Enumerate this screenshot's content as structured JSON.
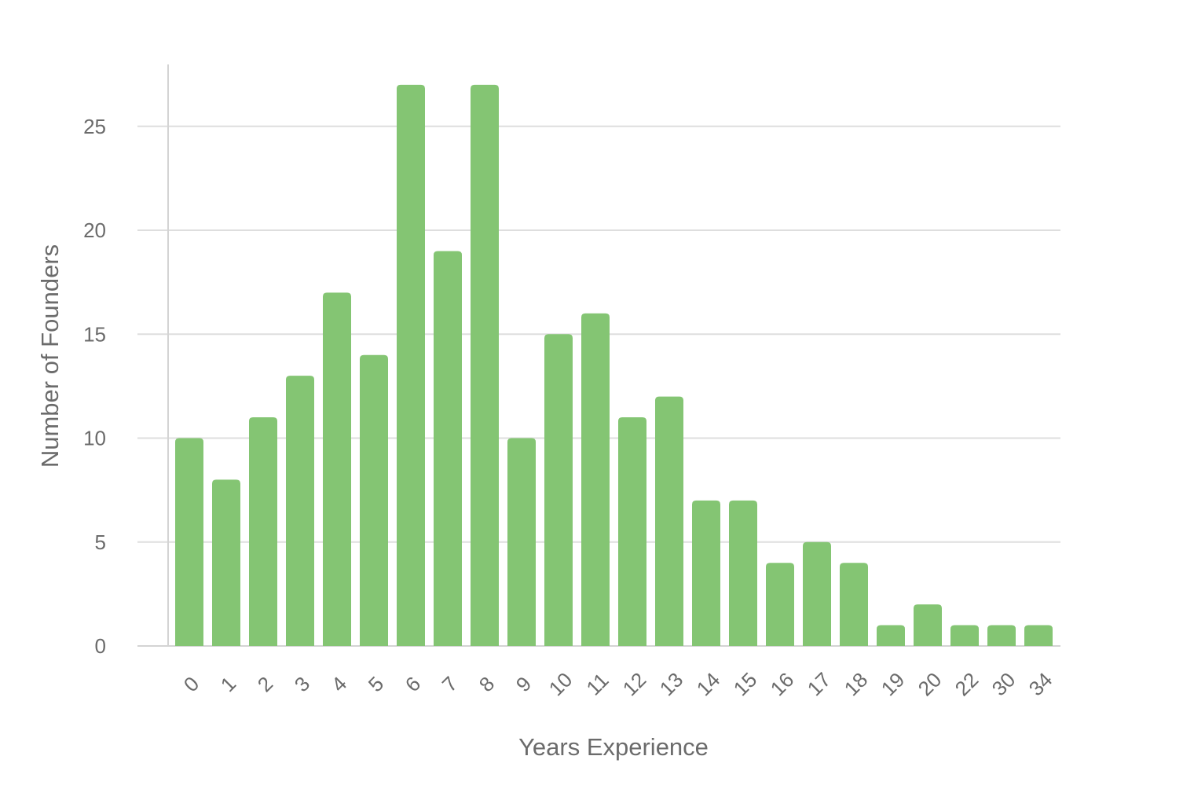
{
  "chart_data": {
    "type": "bar",
    "title": "",
    "xlabel": "Years Experience",
    "ylabel": "Number of Founders",
    "categories": [
      "0",
      "1",
      "2",
      "3",
      "4",
      "5",
      "6",
      "7",
      "8",
      "9",
      "10",
      "11",
      "12",
      "13",
      "14",
      "15",
      "16",
      "17",
      "18",
      "19",
      "20",
      "22",
      "30",
      "34"
    ],
    "values": [
      10,
      8,
      11,
      13,
      17,
      14,
      27,
      19,
      27,
      10,
      15,
      16,
      11,
      12,
      7,
      7,
      4,
      5,
      4,
      1,
      2,
      1,
      1,
      1
    ],
    "ylim": [
      0,
      28
    ],
    "yticks": [
      0,
      5,
      10,
      15,
      20,
      25
    ],
    "grid": true,
    "legend": "none",
    "bar_color": "#84c573"
  }
}
